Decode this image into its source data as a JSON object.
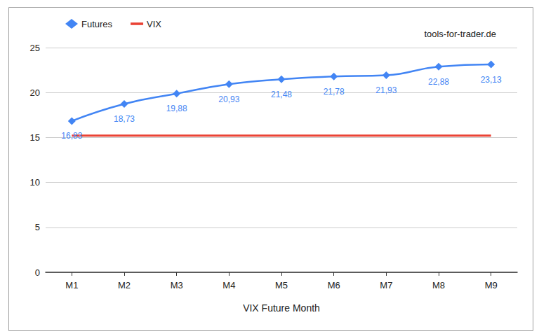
{
  "chart_data": {
    "type": "line",
    "x_label": "VIX Future Month",
    "annotations": [
      "tools-for-trader.de"
    ],
    "categories": [
      "M1",
      "M2",
      "M3",
      "M4",
      "M5",
      "M6",
      "M7",
      "M8",
      "M9"
    ],
    "series": [
      {
        "name": "Futures",
        "color": "#4285f4",
        "marker": "diamond",
        "line_style": "smooth",
        "data_labels": true,
        "values": [
          16.83,
          18.73,
          19.88,
          20.93,
          21.48,
          21.78,
          21.93,
          22.88,
          23.13
        ],
        "value_labels": [
          "16,83",
          "18,73",
          "19,88",
          "20,93",
          "21,48",
          "21,78",
          "21,93",
          "22,88",
          "23,13"
        ]
      },
      {
        "name": "VIX",
        "color": "#ea4335",
        "marker": "none",
        "line_style": "solid",
        "data_labels": false,
        "values": [
          15.2,
          15.2,
          15.2,
          15.2,
          15.2,
          15.2,
          15.2,
          15.2,
          15.2
        ]
      }
    ],
    "ylim": [
      0,
      25
    ],
    "yticks": [
      0,
      5,
      10,
      15,
      20,
      25
    ],
    "grid": true,
    "legend": "top-left"
  }
}
